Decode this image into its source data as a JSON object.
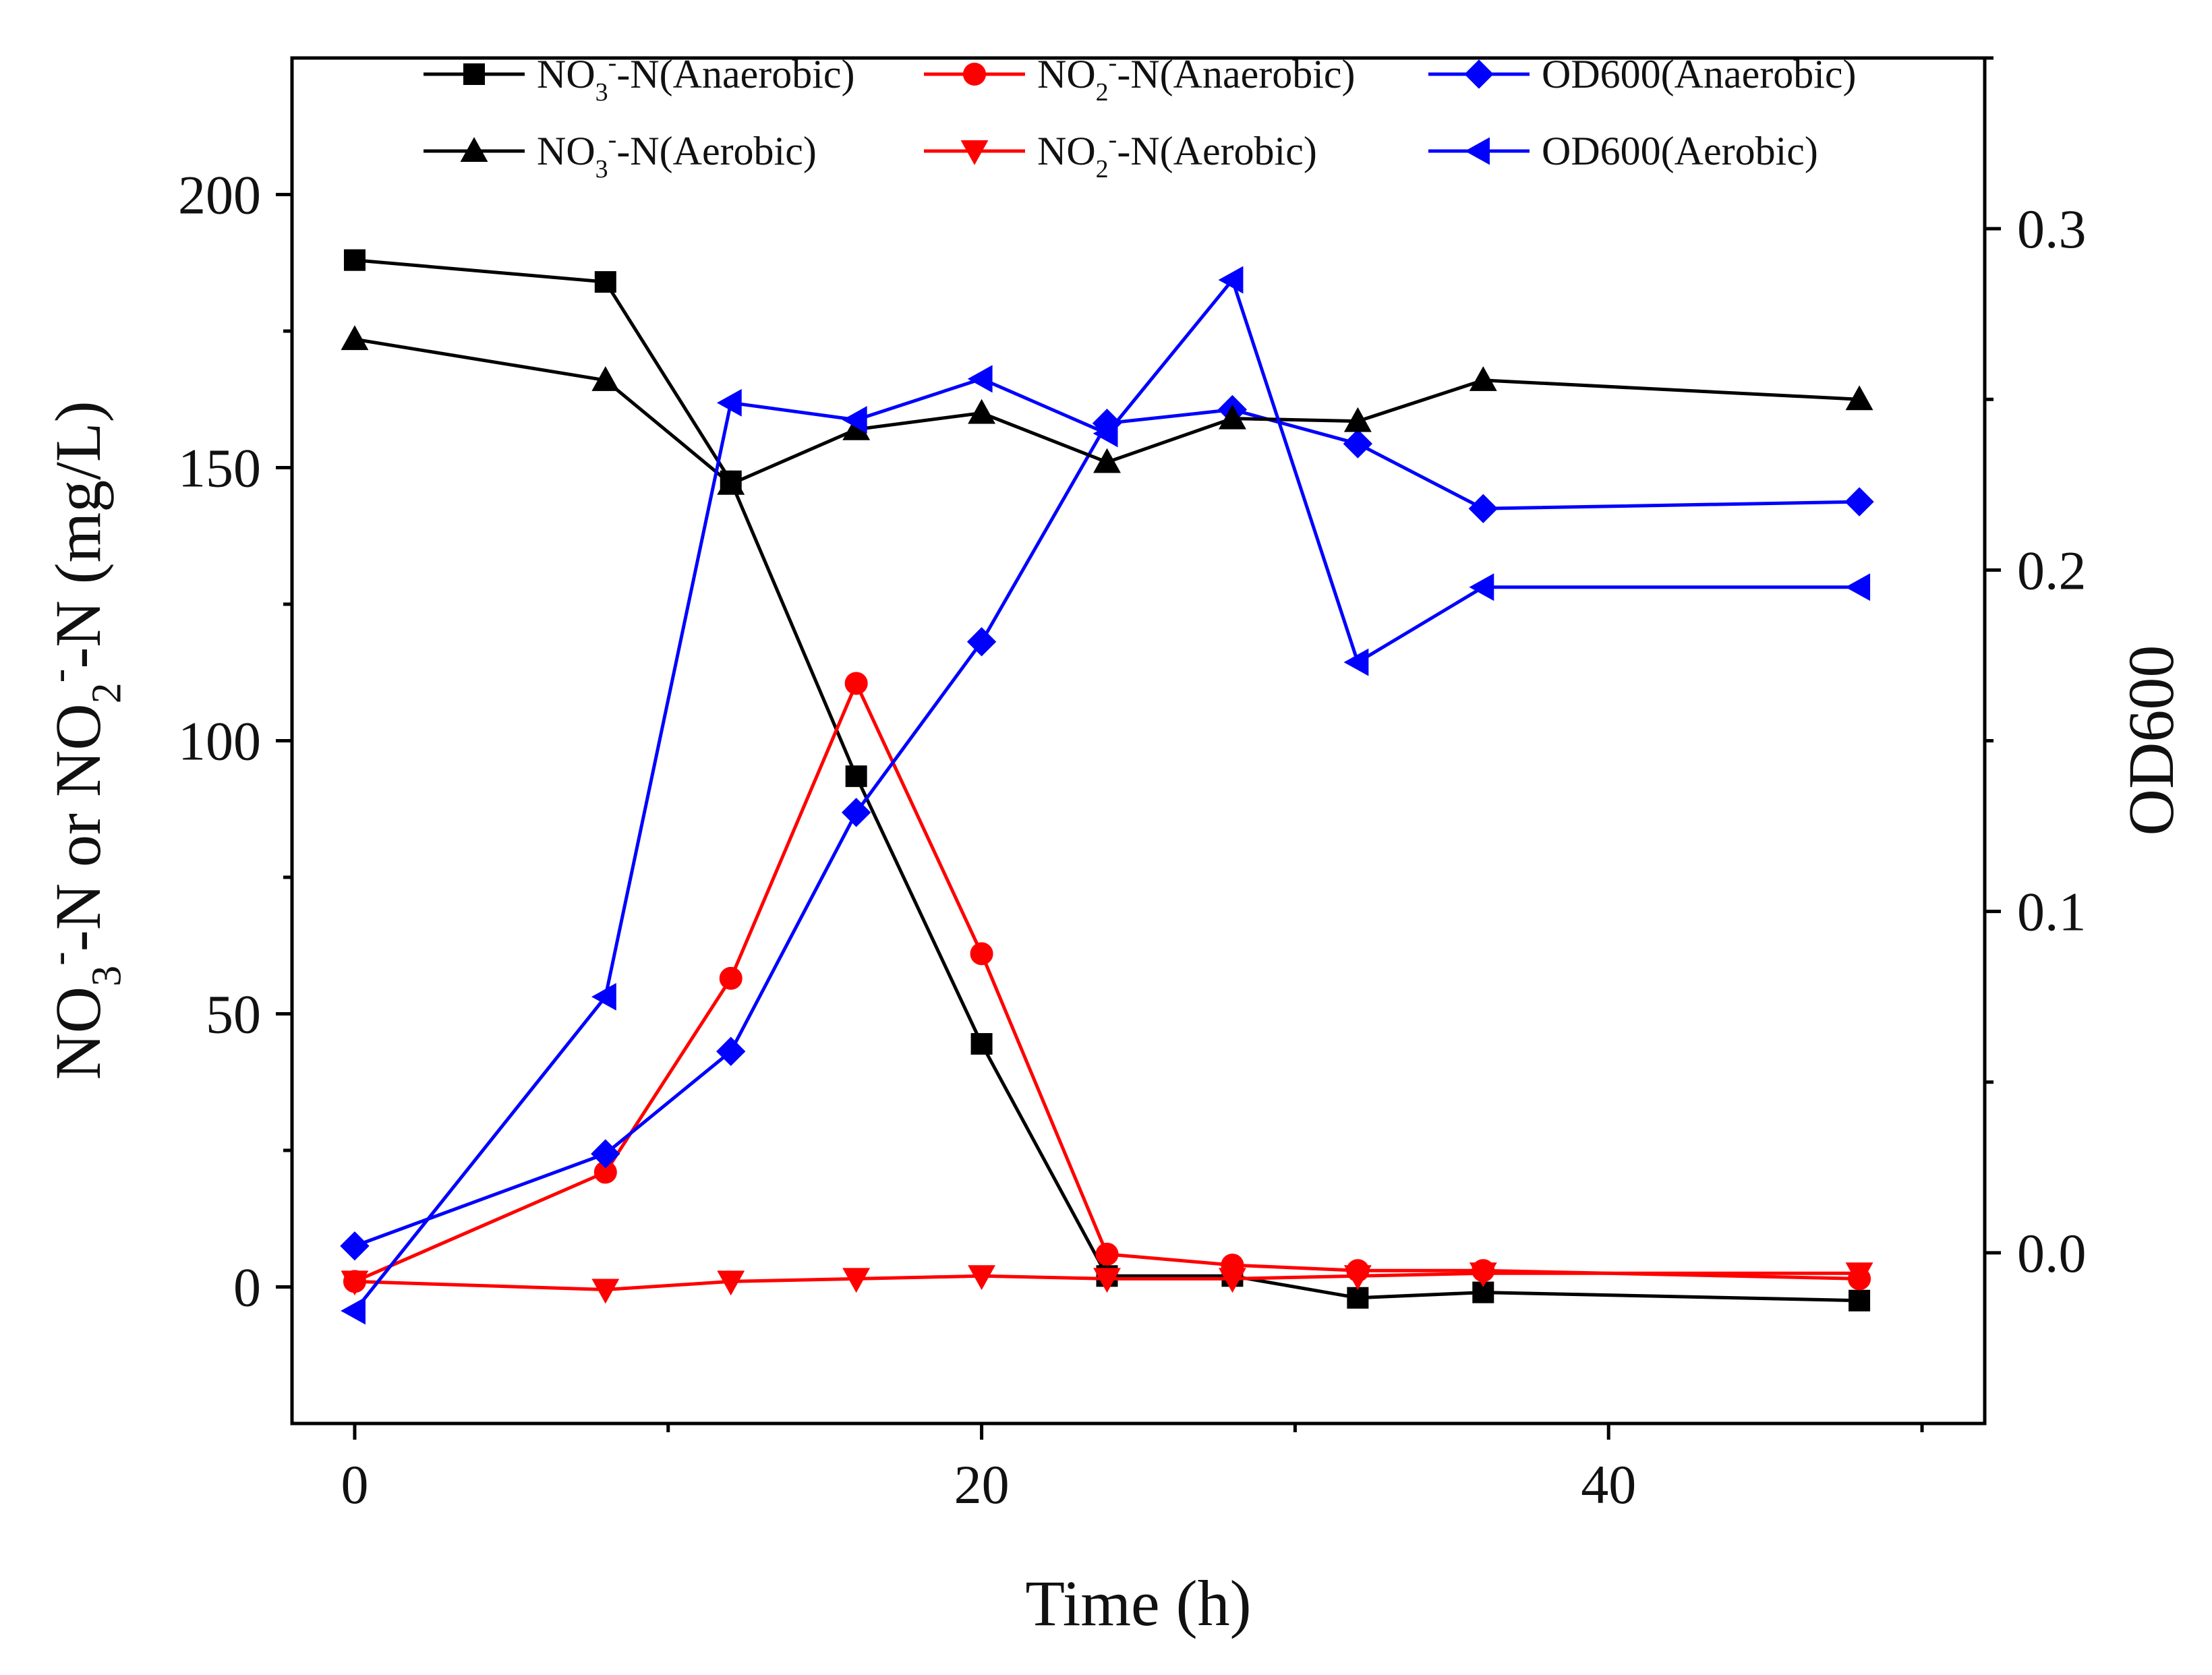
{
  "chart_data": {
    "type": "line",
    "x_label": "Time (h)",
    "y_label": {
      "parts": [
        {
          "t": "NO",
          "s": "n"
        },
        {
          "t": "3",
          "s": "sub"
        },
        {
          "t": "-",
          "s": "sup"
        },
        {
          "t": "-N or NO",
          "s": "n"
        },
        {
          "t": "2",
          "s": "sub"
        },
        {
          "t": "-",
          "s": "sup"
        },
        {
          "t": "-N (mg/L)",
          "s": "n"
        }
      ]
    },
    "y2_label": "OD600",
    "x_ticks": [
      "0",
      "20",
      "40"
    ],
    "x_tick_values": [
      0,
      20,
      40
    ],
    "x_minor_ticks": [
      10,
      30,
      50
    ],
    "x_range": [
      -2,
      52
    ],
    "y_ticks": [
      "0",
      "50",
      "100",
      "150",
      "200"
    ],
    "y_tick_values": [
      0,
      50,
      100,
      150,
      200
    ],
    "y_minor_ticks": [
      25,
      75,
      125,
      175
    ],
    "y_range": [
      -25,
      225
    ],
    "y2_ticks": [
      "0.0",
      "0.1",
      "0.2",
      "0.3"
    ],
    "y2_tick_values": [
      0.0,
      0.1,
      0.2,
      0.3
    ],
    "y2_minor_ticks": [
      0.05,
      0.15,
      0.25,
      0.35
    ],
    "y2_range": [
      -0.05,
      0.35
    ],
    "series": [
      {
        "name": "NO3- -N(Anaerobic)",
        "legend": [
          {
            "t": "NO",
            "s": "n"
          },
          {
            "t": "3",
            "s": "sub"
          },
          {
            "t": "-",
            "s": "sup"
          },
          {
            "t": "-N(Anaerobic)",
            "s": "n"
          }
        ],
        "color": "#000000",
        "marker": "square",
        "axis": "left",
        "x": [
          0,
          8,
          12,
          16,
          20,
          24,
          28,
          32,
          36,
          48
        ],
        "y": [
          188,
          184,
          147.5,
          93.5,
          44.5,
          2,
          2,
          -2,
          -1,
          -2.5
        ]
      },
      {
        "name": "NO2- -N(Anaerobic)",
        "legend": [
          {
            "t": "NO",
            "s": "n"
          },
          {
            "t": "2",
            "s": "sub"
          },
          {
            "t": "-",
            "s": "sup"
          },
          {
            "t": "-N(Anaerobic)",
            "s": "n"
          }
        ],
        "color": "#ff0000",
        "marker": "circle",
        "axis": "left",
        "x": [
          0,
          8,
          12,
          16,
          20,
          24,
          28,
          32,
          36,
          48
        ],
        "y": [
          1,
          21,
          56.5,
          110.5,
          61,
          6,
          4,
          3,
          3,
          1.5
        ]
      },
      {
        "name": "OD600(Anaerobic)",
        "legend": [
          {
            "t": "OD600(Anaerobic)",
            "s": "n"
          }
        ],
        "color": "#0000ff",
        "marker": "diamond",
        "axis": "right",
        "x": [
          0,
          8,
          12,
          16,
          20,
          24,
          28,
          32,
          36,
          48
        ],
        "y": [
          0.002,
          0.029,
          0.059,
          0.129,
          0.179,
          0.243,
          0.247,
          0.237,
          0.218,
          0.22
        ]
      },
      {
        "name": "NO3- -N(Aerobic)",
        "legend": [
          {
            "t": "NO",
            "s": "n"
          },
          {
            "t": "3",
            "s": "sub"
          },
          {
            "t": "-",
            "s": "sup"
          },
          {
            "t": "-N(Aerobic)",
            "s": "n"
          }
        ],
        "color": "#000000",
        "marker": "triangle-up",
        "axis": "left",
        "x": [
          0,
          8,
          12,
          16,
          20,
          24,
          28,
          32,
          36,
          48
        ],
        "y": [
          173.5,
          166,
          147,
          157,
          160,
          151,
          159,
          158.5,
          166,
          162.5
        ]
      },
      {
        "name": "NO2- -N(Aerobic)",
        "legend": [
          {
            "t": "NO",
            "s": "n"
          },
          {
            "t": "2",
            "s": "sub"
          },
          {
            "t": "-",
            "s": "sup"
          },
          {
            "t": "-N(Aerobic)",
            "s": "n"
          }
        ],
        "color": "#ff0000",
        "marker": "triangle-down",
        "axis": "left",
        "x": [
          0,
          8,
          12,
          16,
          20,
          24,
          28,
          32,
          36,
          48
        ],
        "y": [
          1,
          -0.5,
          1,
          1.5,
          2,
          1.5,
          1.5,
          2,
          2.5,
          2.5
        ]
      },
      {
        "name": "OD600(Aerobic)",
        "legend": [
          {
            "t": "OD600(Aerobic)",
            "s": "n"
          }
        ],
        "color": "#0000ff",
        "marker": "triangle-left",
        "axis": "right",
        "x": [
          0,
          8,
          12,
          16,
          20,
          24,
          28,
          32,
          36,
          48
        ],
        "y": [
          -0.017,
          0.075,
          0.249,
          0.244,
          0.256,
          0.24,
          0.285,
          0.173,
          0.195,
          0.195
        ]
      }
    ]
  }
}
